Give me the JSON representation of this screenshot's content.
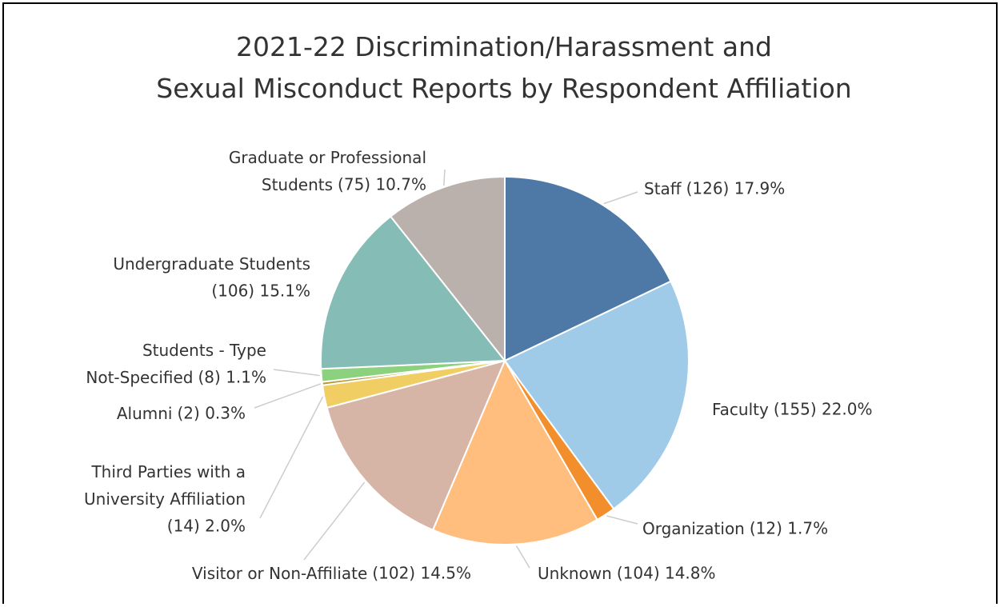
{
  "chart_data": {
    "type": "pie",
    "title": "2021-22 Discrimination/Harassment and Sexual Misconduct Reports by Respondent Affiliation",
    "categories": [
      "Staff",
      "Faculty",
      "Organization",
      "Unknown",
      "Visitor or Non-Affiliate",
      "Third Parties with a University Affiliation",
      "Alumni",
      "Students - Type Not-Specified",
      "Undergraduate Students",
      "Graduate or Professional Students"
    ],
    "values": [
      126,
      155,
      12,
      104,
      102,
      14,
      2,
      8,
      106,
      75
    ],
    "value_labels": [
      "(126) 17.9%",
      "(155) 22.0%",
      "(12) 1.7%",
      "(104) 14.8%",
      "(102) 14.5%",
      "(14) 2.0%",
      "(2) 0.3%",
      "(8) 1.1%",
      "(106) 15.1%",
      "(75) 10.7%"
    ],
    "colors": [
      "#4e79a7",
      "#a0cbe8",
      "#f28e2b",
      "#ffbe7d",
      "#d7b5a6",
      "#f1ce63",
      "#b6992d",
      "#8cd17d",
      "#86bcb6",
      "#bab0ac"
    ]
  }
}
